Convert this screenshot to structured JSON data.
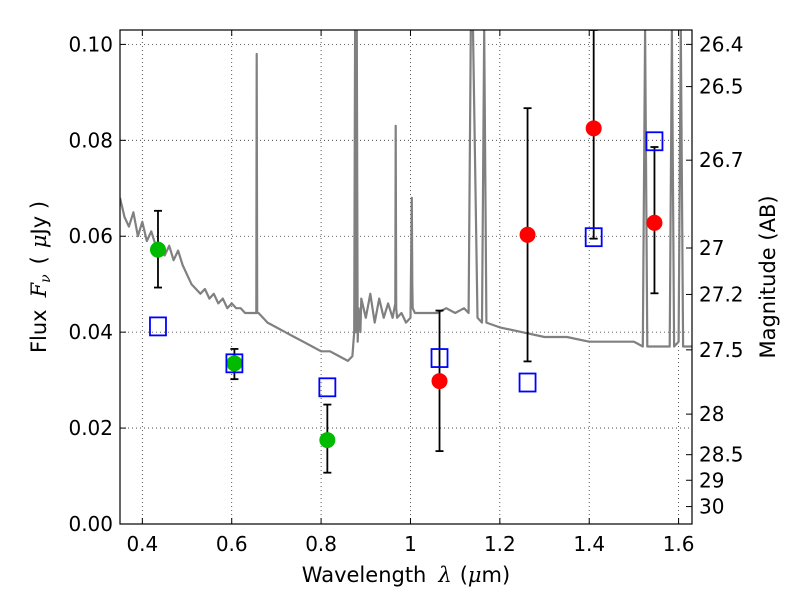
{
  "chart_data": {
    "type": "scatter",
    "xlabel_text": "Wavelength",
    "xlabel_symbol": "λ",
    "xlabel_unit_open": "(",
    "xlabel_unit_mu": "μ",
    "xlabel_unit_rest": "m)",
    "ylabel_text": "Flux",
    "ylabel_symbol": "F",
    "ylabel_sub": "ν",
    "ylabel_unit_open": "(",
    "ylabel_unit_mu": "μ",
    "ylabel_unit_rest": "Jy )",
    "y2label": "Magnitude (AB)",
    "xlim": [
      0.35,
      1.63
    ],
    "ylim": [
      0.0,
      0.103
    ],
    "x_ticks": [
      0.4,
      0.6,
      0.8,
      1.0,
      1.2,
      1.4,
      1.6
    ],
    "x_tick_labels": [
      "0.4",
      "0.6",
      "0.8",
      "1",
      "1.2",
      "1.4",
      "1.6"
    ],
    "y_ticks": [
      0.0,
      0.02,
      0.04,
      0.06,
      0.08,
      0.1
    ],
    "y_tick_labels": [
      "0.00",
      "0.02",
      "0.04",
      "0.06",
      "0.08",
      "0.10"
    ],
    "y2_ticks": [
      26.4,
      26.5,
      26.7,
      27,
      27.2,
      27.5,
      28,
      28.5,
      29,
      30
    ],
    "y2_tick_labels": [
      "26.4",
      "26.5",
      "26.7",
      "27",
      "27.2",
      "27.5",
      "28",
      "28.5",
      "29",
      "30"
    ],
    "grid": true,
    "series": [
      {
        "marker": "circle",
        "color": "#00bb00",
        "points": [
          {
            "x": 0.435,
            "y": 0.0572,
            "err_lo": 0.0493,
            "err_hi": 0.0653
          },
          {
            "x": 0.606,
            "y": 0.0335,
            "err_lo": 0.0302,
            "err_hi": 0.0365
          },
          {
            "x": 0.814,
            "y": 0.0175,
            "err_lo": 0.0107,
            "err_hi": 0.0249
          }
        ]
      },
      {
        "marker": "circle",
        "color": "#ff0000",
        "points": [
          {
            "x": 1.065,
            "y": 0.0298,
            "err_lo": 0.0152,
            "err_hi": 0.0445
          },
          {
            "x": 1.262,
            "y": 0.0603,
            "err_lo": 0.0339,
            "err_hi": 0.0867
          },
          {
            "x": 1.41,
            "y": 0.0825,
            "err_lo": 0.0595,
            "err_hi": 0.103
          },
          {
            "x": 1.546,
            "y": 0.0628,
            "err_lo": 0.0481,
            "err_hi": 0.0786
          }
        ]
      },
      {
        "marker": "open-square",
        "color": "#0000ff",
        "points": [
          {
            "x": 0.435,
            "y": 0.0412
          },
          {
            "x": 0.606,
            "y": 0.0335
          },
          {
            "x": 0.814,
            "y": 0.0285
          },
          {
            "x": 1.065,
            "y": 0.0346
          },
          {
            "x": 1.262,
            "y": 0.0295
          },
          {
            "x": 1.41,
            "y": 0.0598
          },
          {
            "x": 1.546,
            "y": 0.0798
          }
        ]
      }
    ],
    "model_spectrum": {
      "color": "#808080",
      "x": [
        0.35,
        0.36,
        0.37,
        0.38,
        0.39,
        0.4,
        0.41,
        0.42,
        0.43,
        0.44,
        0.45,
        0.46,
        0.47,
        0.48,
        0.49,
        0.5,
        0.51,
        0.52,
        0.53,
        0.54,
        0.55,
        0.56,
        0.57,
        0.58,
        0.59,
        0.6,
        0.61,
        0.62,
        0.63,
        0.64,
        0.65,
        0.655,
        0.656,
        0.657,
        0.66,
        0.67,
        0.68,
        0.7,
        0.72,
        0.74,
        0.76,
        0.78,
        0.8,
        0.82,
        0.84,
        0.86,
        0.87,
        0.874,
        0.876,
        0.878,
        0.88,
        0.882,
        0.884,
        0.888,
        0.89,
        0.9,
        0.91,
        0.92,
        0.93,
        0.94,
        0.95,
        0.96,
        0.966,
        0.967,
        0.968,
        0.97,
        0.98,
        0.99,
        1.0,
        1.003,
        1.004,
        1.005,
        1.01,
        1.02,
        1.04,
        1.06,
        1.08,
        1.1,
        1.12,
        1.13,
        1.135,
        1.14,
        1.15,
        1.16,
        1.165,
        1.17,
        1.2,
        1.25,
        1.3,
        1.35,
        1.4,
        1.45,
        1.5,
        1.52,
        1.525,
        1.53,
        1.55,
        1.58,
        1.585,
        1.59,
        1.6,
        1.605,
        1.61,
        1.63
      ],
      "y": [
        0.068,
        0.064,
        0.062,
        0.065,
        0.06,
        0.063,
        0.059,
        0.061,
        0.058,
        0.057,
        0.056,
        0.058,
        0.055,
        0.057,
        0.054,
        0.052,
        0.05,
        0.049,
        0.048,
        0.049,
        0.047,
        0.048,
        0.046,
        0.047,
        0.045,
        0.046,
        0.045,
        0.045,
        0.044,
        0.044,
        0.044,
        0.044,
        0.098,
        0.044,
        0.044,
        0.043,
        0.042,
        0.041,
        0.04,
        0.039,
        0.038,
        0.037,
        0.036,
        0.036,
        0.035,
        0.034,
        0.035,
        0.04,
        0.103,
        0.04,
        0.103,
        0.038,
        0.045,
        0.04,
        0.047,
        0.043,
        0.048,
        0.042,
        0.047,
        0.043,
        0.046,
        0.043,
        0.046,
        0.083,
        0.045,
        0.043,
        0.044,
        0.042,
        0.043,
        0.068,
        0.05,
        0.045,
        0.044,
        0.044,
        0.044,
        0.044,
        0.045,
        0.044,
        0.045,
        0.044,
        0.103,
        0.103,
        0.043,
        0.042,
        0.103,
        0.042,
        0.041,
        0.04,
        0.039,
        0.039,
        0.038,
        0.038,
        0.038,
        0.037,
        0.103,
        0.037,
        0.037,
        0.037,
        0.103,
        0.037,
        0.038,
        0.103,
        0.037,
        0.037
      ]
    }
  }
}
